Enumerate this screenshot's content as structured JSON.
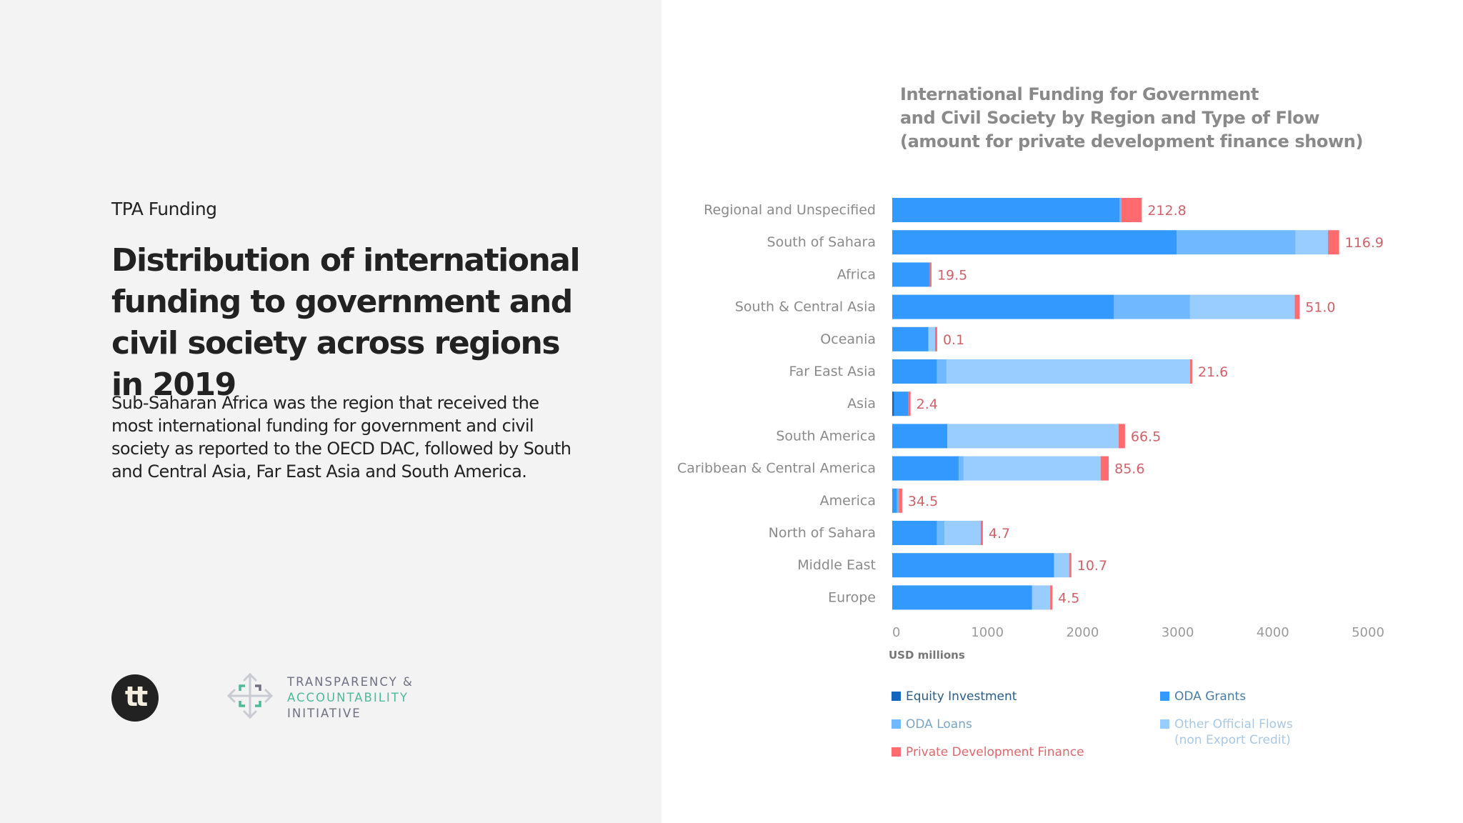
{
  "left_panel": {
    "eyebrow": "TPA Funding",
    "headline": "Distribution of international funding to government and civil society across regions in 2019",
    "description": "Sub-Saharan Africa was the region that received the most international funding for government and civil society as reported to the OECD DAC, followed by South and Central Asia, Far East Asia and South America.",
    "logo_tt": "tt",
    "tai_logo": {
      "line1": "TRANSPARENCY &",
      "line2": "ACCOUNTABILITY",
      "line3": "INITIATIVE"
    }
  },
  "colors": {
    "equity": "#1565c0",
    "oda_grants": "#3399ff",
    "oda_loans": "#70b8ff",
    "oof": "#99ccff",
    "pdf": "#ff6b6e",
    "label": "#d0626a"
  },
  "chart_data": {
    "type": "bar",
    "orientation": "horizontal",
    "stacked": true,
    "title": "International Funding for Government and Civil Society by Region and Type of Flow (amount for private development finance shown)",
    "title_lines": [
      "International Funding for Government",
      "and Civil Society by Region and Type of Flow",
      "(amount for private development finance shown)"
    ],
    "xlabel": "USD millions",
    "ylabel": "",
    "xlim": [
      0,
      5000
    ],
    "xticks": [
      "0",
      "1000",
      "2000",
      "3000",
      "4000",
      "5000"
    ],
    "grid": false,
    "legend_position": "bottom",
    "categories": [
      "Regional and Unspecified",
      "South of Sahara",
      "Africa",
      "South & Central Asia",
      "Oceania",
      "Far East Asia",
      "Asia",
      "South America",
      "Caribbean & Central America",
      "America",
      "North of Sahara",
      "Middle East",
      "Europe"
    ],
    "series": [
      {
        "name": "Equity Investment",
        "key": "equity",
        "values": [
          0,
          0,
          0,
          0,
          0,
          0,
          20,
          0,
          0,
          0,
          0,
          0,
          0
        ]
      },
      {
        "name": "ODA Grants",
        "key": "oda_grants",
        "values": [
          2390,
          2990,
          390,
          2330,
          380,
          470,
          150,
          580,
          700,
          50,
          470,
          1700,
          1470
        ]
      },
      {
        "name": "ODA Loans",
        "key": "oda_loans",
        "values": [
          20,
          1250,
          0,
          800,
          0,
          100,
          0,
          0,
          50,
          20,
          80,
          0,
          0
        ]
      },
      {
        "name": "Other Official Flows (non Export Credit)",
        "key": "oof",
        "values": [
          0,
          340,
          0,
          1100,
          70,
          2560,
          0,
          1800,
          1440,
          0,
          380,
          160,
          190
        ]
      },
      {
        "name": "Private Development Finance",
        "key": "pdf",
        "values": [
          212.8,
          116.9,
          19.5,
          51.0,
          0.1,
          21.6,
          2.4,
          66.5,
          85.6,
          34.5,
          4.7,
          10.7,
          4.5
        ]
      }
    ],
    "data_labels": [
      "212.8",
      "116.9",
      "19.5",
      "51.0",
      "0.1",
      "21.6",
      "2.4",
      "66.5",
      "85.6",
      "34.5",
      "4.7",
      "10.7",
      "4.5"
    ],
    "legend": [
      {
        "label": "Equity Investment",
        "key": "equity"
      },
      {
        "label": "ODA Grants",
        "key": "oda_grants"
      },
      {
        "label": "ODA Loans",
        "key": "oda_loans"
      },
      {
        "label": "Other Official Flows",
        "label2": "(non Export Credit)",
        "key": "oof"
      },
      {
        "label": "Private Development Finance",
        "key": "pdf"
      }
    ]
  }
}
